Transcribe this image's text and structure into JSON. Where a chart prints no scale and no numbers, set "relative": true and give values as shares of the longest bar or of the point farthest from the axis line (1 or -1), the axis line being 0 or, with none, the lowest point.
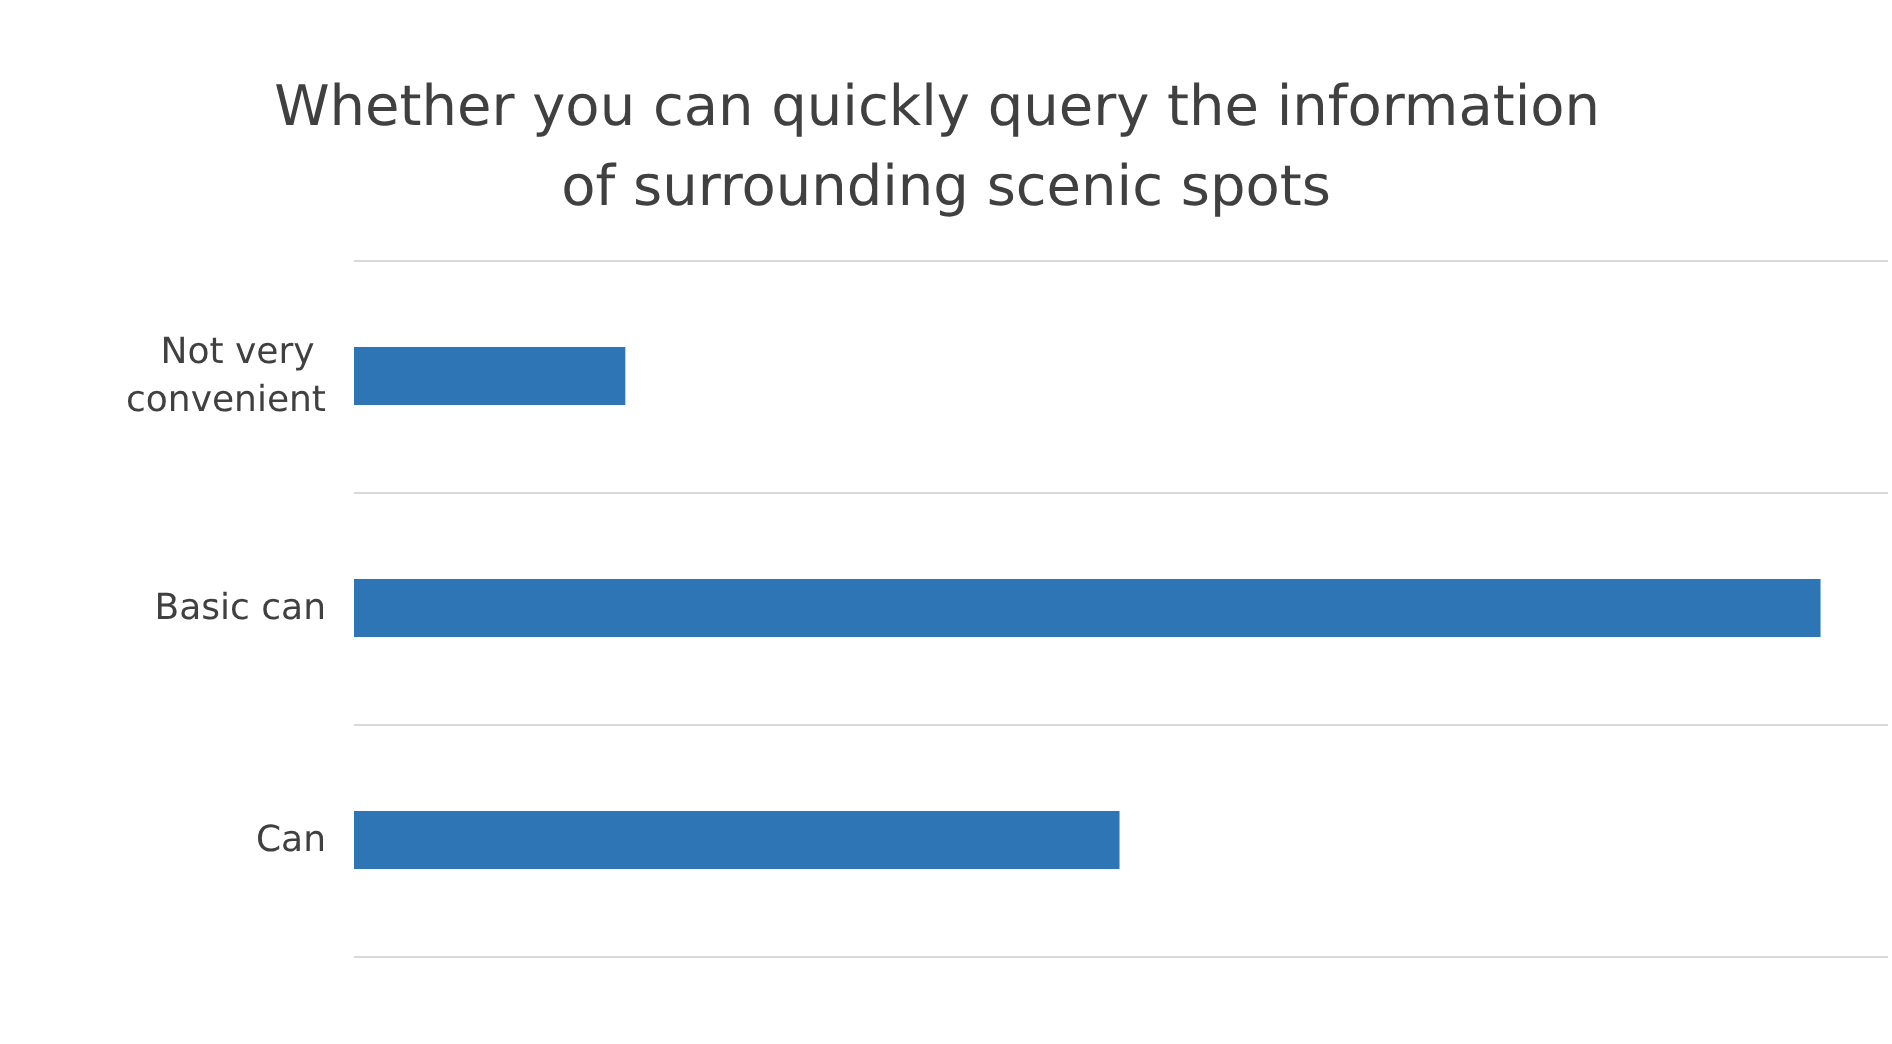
{
  "chart_data": {
    "type": "bar",
    "orientation": "horizontal",
    "relative": true,
    "title": "Whether you can quickly query the information of surrounding scenic spots",
    "categories": [
      "Not very convenient",
      "Basic can",
      "Can"
    ],
    "values": [
      0.185,
      1,
      0.522
    ],
    "color": "#2e75b6",
    "grid": "y"
  }
}
